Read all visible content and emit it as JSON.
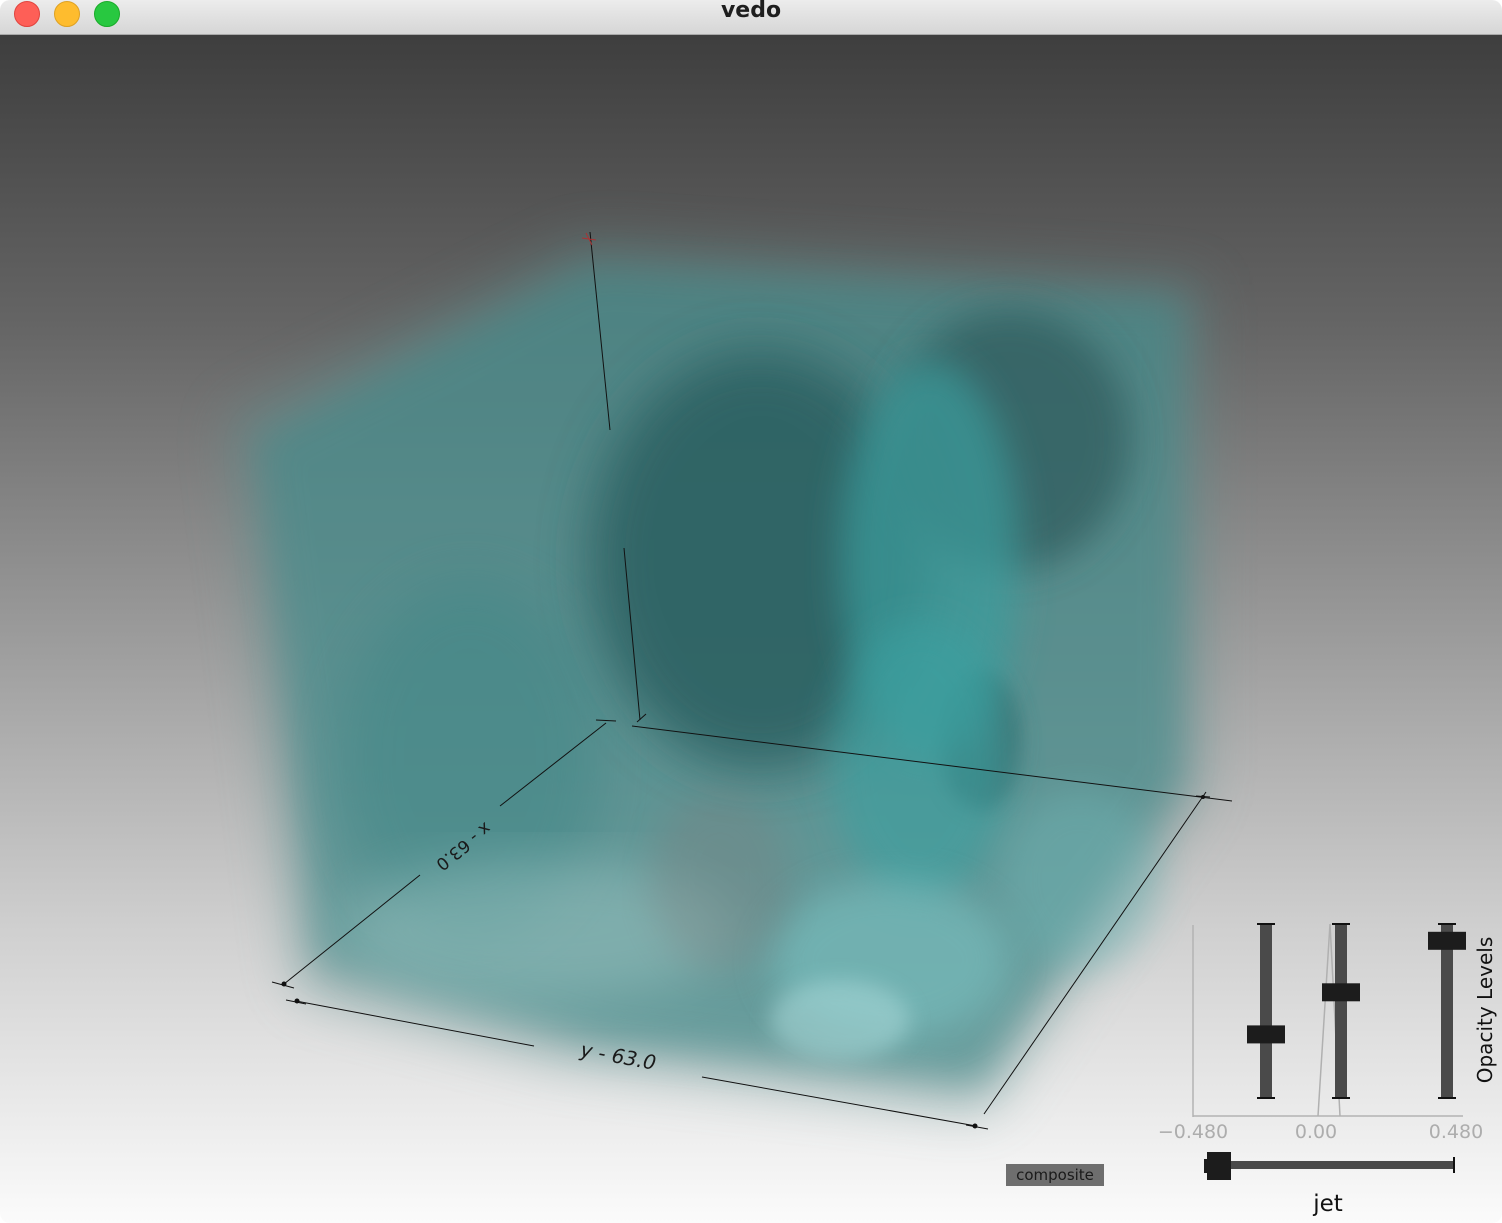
{
  "window": {
    "title": "vedo"
  },
  "axes": {
    "x_label": "x - 63.0",
    "y_label": "y - 63.0"
  },
  "volume": {
    "color": "#2f8f8f"
  },
  "opacity_panel": {
    "title": "Opacity Levels",
    "tick_labels": [
      "−0.480",
      "0.00",
      "0.480"
    ],
    "slider_levels": [
      0.35,
      0.62,
      0.95
    ]
  },
  "render_mode_button": {
    "label": "composite"
  },
  "colormap_slider": {
    "label": "jet",
    "value": 0.0
  }
}
